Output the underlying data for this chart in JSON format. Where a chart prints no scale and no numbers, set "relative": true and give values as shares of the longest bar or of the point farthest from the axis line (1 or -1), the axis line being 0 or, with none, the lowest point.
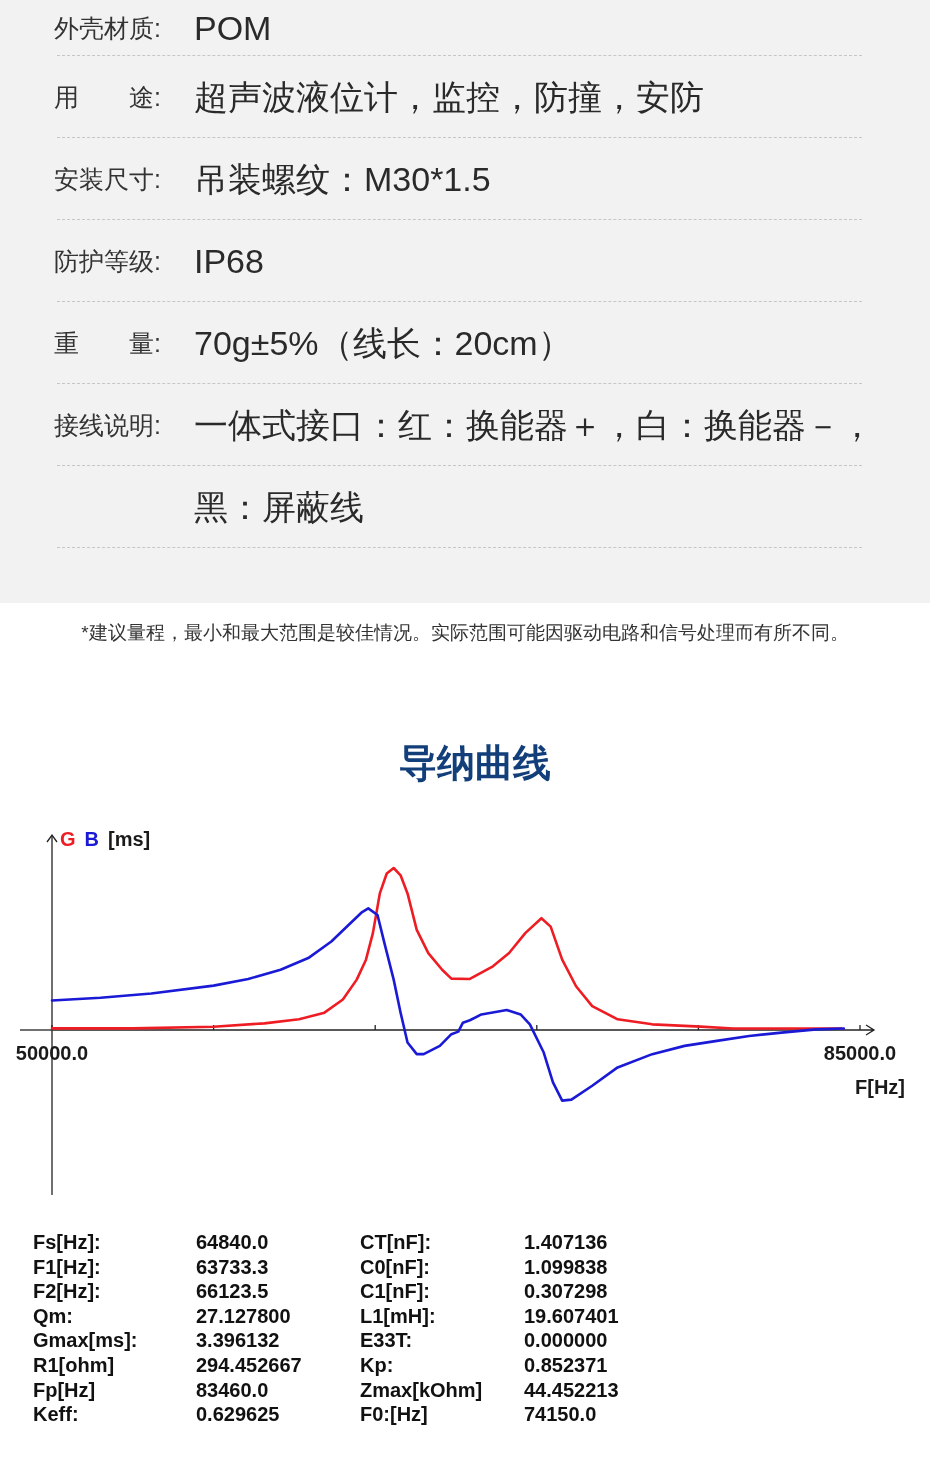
{
  "chart_data": [
    {
      "type": "other",
      "annotations": [
        "外壳材质:",
        "POM",
        "用　　途:",
        "超声波液位计，监控，防撞，安防",
        "安装尺寸:",
        "吊装螺纹：M30*1.5",
        "防护等级:",
        "IP68",
        "重　　量:",
        "70g±5%（线长：20cm）",
        "接线说明:",
        "一体式接口：红：换能器＋，白：换能器－，",
        "黑：屏蔽线",
        "*建议量程，最小和最大范围是较佳情况。实际范围可能因驱动电路和信号处理而有所不同。"
      ]
    },
    {
      "type": "line",
      "title": "导纳曲线",
      "relative": true,
      "xlim": [
        50000,
        85000
      ],
      "xticks": [
        {
          "value": 50000,
          "label": "50000.0"
        },
        {
          "value": 57000,
          "label": null
        },
        {
          "value": 64000,
          "label": null
        },
        {
          "value": 71000,
          "label": null
        },
        {
          "value": 78000,
          "label": null
        },
        {
          "value": 85000,
          "label": "85000.0"
        }
      ],
      "xlabel": "F[Hz]",
      "ylabel": "[ms]",
      "legend": "top left",
      "series": [
        {
          "name": "G",
          "color": "#ee1d23",
          "x": [
            50000,
            53500,
            57000,
            59200,
            60700,
            61800,
            62600,
            63200,
            63600,
            63900,
            64200,
            64500,
            64800,
            65100,
            65400,
            65800,
            66300,
            66900,
            67300,
            68100,
            68300,
            69100,
            69800,
            70500,
            71200,
            71600,
            72100,
            72700,
            73400,
            74500,
            76000,
            78100,
            79500,
            84200
          ],
          "values": [
            0.01,
            0.01,
            0.02,
            0.041,
            0.066,
            0.107,
            0.188,
            0.311,
            0.434,
            0.598,
            0.843,
            0.966,
            1.0,
            0.955,
            0.843,
            0.618,
            0.475,
            0.372,
            0.317,
            0.315,
            0.331,
            0.393,
            0.475,
            0.598,
            0.69,
            0.638,
            0.434,
            0.27,
            0.147,
            0.066,
            0.035,
            0.021,
            0.009,
            0.009
          ]
        },
        {
          "name": "B",
          "color": "#1a1ad6",
          "x": [
            50000,
            52100,
            54300,
            57000,
            58500,
            59900,
            61100,
            62100,
            62800,
            63400,
            63700,
            64100,
            64400,
            64800,
            65100,
            65400,
            65800,
            66100,
            66800,
            67300,
            67600,
            67800,
            68100,
            68600,
            69700,
            70300,
            70700,
            71300,
            71700,
            72100,
            72500,
            73400,
            74500,
            76000,
            77400,
            78800,
            80200,
            81600,
            83100,
            84300
          ],
          "values": [
            0.182,
            0.199,
            0.225,
            0.274,
            0.315,
            0.372,
            0.444,
            0.546,
            0.642,
            0.724,
            0.751,
            0.71,
            0.536,
            0.311,
            0.107,
            -0.077,
            -0.149,
            -0.149,
            -0.098,
            -0.026,
            -0.01,
            0.045,
            0.06,
            0.096,
            0.123,
            0.096,
            0.035,
            -0.139,
            -0.323,
            -0.436,
            -0.43,
            -0.344,
            -0.231,
            -0.149,
            -0.098,
            -0.067,
            -0.037,
            -0.016,
            0.004,
            0.009
          ]
        }
      ],
      "annotations": [
        "Fs[Hz]:",
        "64840.0",
        "CT[nF]:",
        "1.407136",
        "F1[Hz]:",
        "63733.3",
        "C0[nF]:",
        "1.099838",
        "F2[Hz]:",
        "66123.5",
        "C1[nF]:",
        "0.307298",
        "Qm:",
        "27.127800",
        "L1[mH]:",
        "19.607401",
        "Gmax[ms]:",
        "3.396132",
        "E33T:",
        "0.000000",
        "R1[ohm]",
        "294.452667",
        "Kp:",
        "0.852371",
        "Fp[Hz]",
        "83460.0",
        "Zmax[kOhm]",
        "44.452213",
        "Keff:",
        "0.629625",
        "F0:[Hz]",
        "74150.0"
      ]
    }
  ]
}
